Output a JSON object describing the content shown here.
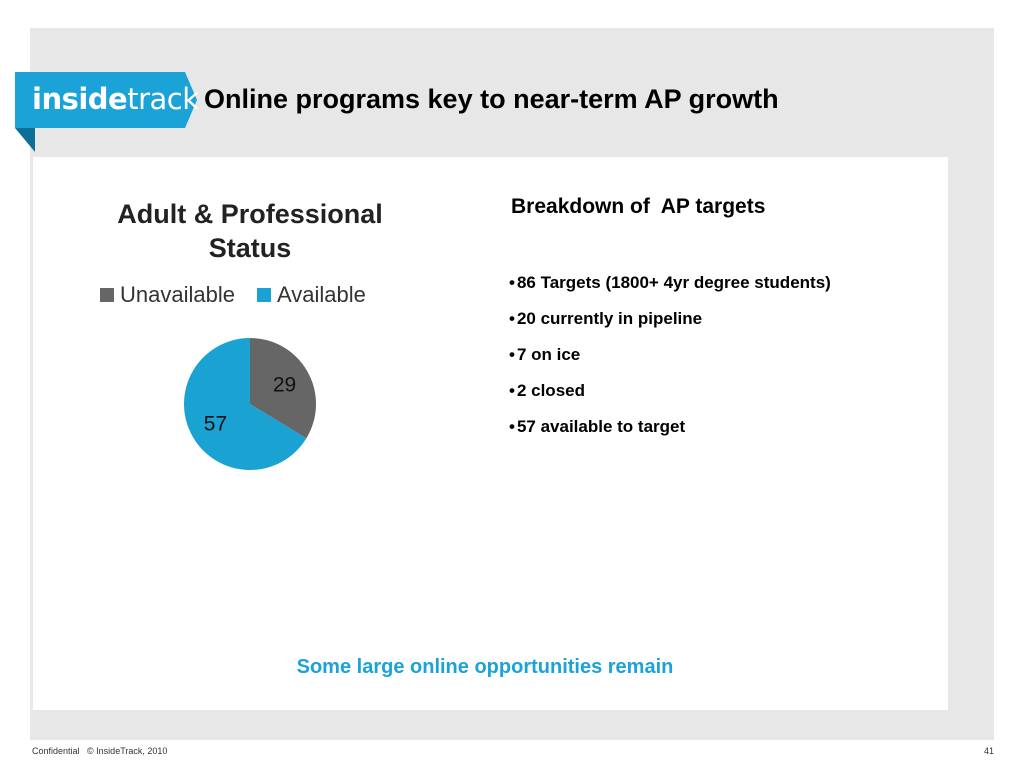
{
  "header": {
    "logo_bold": "inside",
    "logo_light": "track",
    "title": "Online programs key to near-term AP growth"
  },
  "chart_data": {
    "type": "pie",
    "title_line1": "Adult & Professional",
    "title_line2": "Status",
    "categories": [
      "Unavailable",
      "Available"
    ],
    "values": [
      29,
      57
    ],
    "colors": [
      "#666666",
      "#1aa3d2"
    ],
    "legend_position": "top"
  },
  "breakdown": {
    "title": "Breakdown of  AP targets",
    "bullet_symbol": "•",
    "items": [
      "86 Targets (1800+ 4yr degree students)",
      "20 currently in pipeline",
      "7 on ice",
      "2 closed",
      "57 available to target"
    ]
  },
  "takeaway": "Some large online opportunities remain",
  "footer": {
    "confidential": "Confidential",
    "copyright": "© InsideTrack, 2010",
    "page_number": "41"
  }
}
